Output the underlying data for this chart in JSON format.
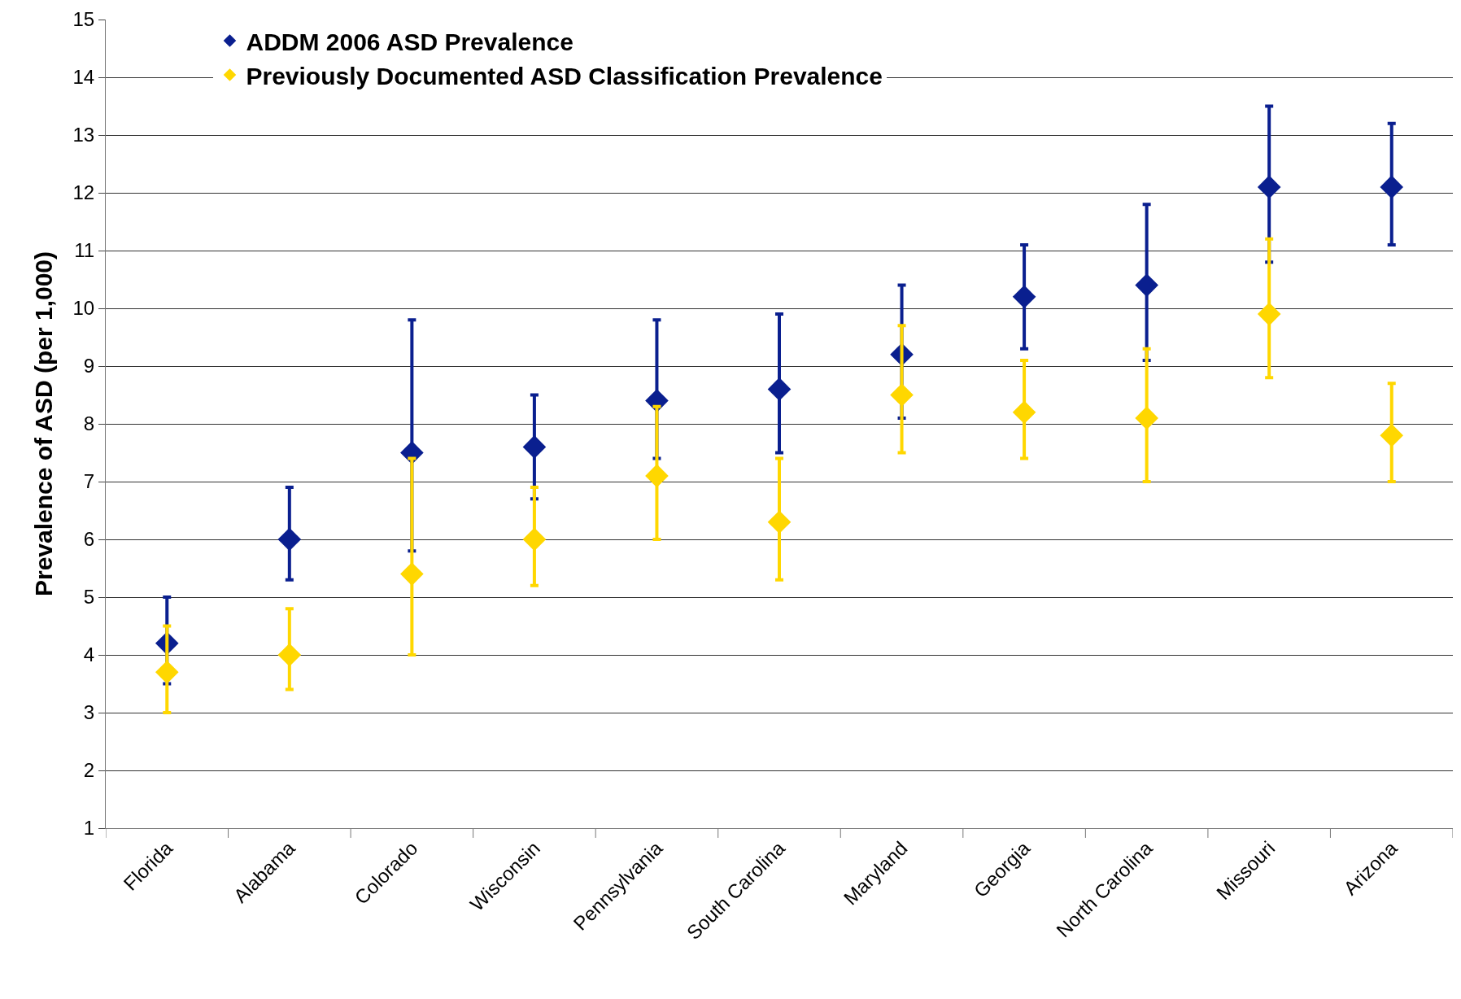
{
  "chart_data": {
    "type": "scatter",
    "ylabel": "Prevalence of ASD (per 1,000)",
    "categories": [
      "Florida",
      "Alabama",
      "Colorado",
      "Wisconsin",
      "Pennsylvania",
      "South Carolina",
      "Maryland",
      "Georgia",
      "North Carolina",
      "Missouri",
      "Arizona"
    ],
    "series": [
      {
        "name": "ADDM 2006 ASD Prevalence",
        "color": "#0a1f8f",
        "values": [
          4.2,
          6.0,
          7.5,
          7.6,
          8.4,
          8.6,
          9.2,
          10.2,
          10.4,
          12.1,
          12.1
        ],
        "errors": [
          [
            3.5,
            5.0
          ],
          [
            5.3,
            6.9
          ],
          [
            5.8,
            9.8
          ],
          [
            6.7,
            8.5
          ],
          [
            7.4,
            9.8
          ],
          [
            7.5,
            9.9
          ],
          [
            8.1,
            10.4
          ],
          [
            9.3,
            11.1
          ],
          [
            9.1,
            11.8
          ],
          [
            10.8,
            13.5
          ],
          [
            11.1,
            13.2
          ]
        ]
      },
      {
        "name": "Previously Documented ASD Classification Prevalence",
        "color": "#ffd700",
        "values": [
          3.7,
          4.0,
          5.4,
          6.0,
          7.1,
          6.3,
          8.5,
          8.2,
          8.1,
          9.9,
          7.8
        ],
        "errors": [
          [
            3.0,
            4.5
          ],
          [
            3.4,
            4.8
          ],
          [
            4.0,
            7.4
          ],
          [
            5.2,
            6.9
          ],
          [
            6.0,
            8.3
          ],
          [
            5.3,
            7.4
          ],
          [
            7.5,
            9.7
          ],
          [
            7.4,
            9.1
          ],
          [
            7.0,
            9.3
          ],
          [
            8.8,
            11.2
          ],
          [
            7.0,
            8.7
          ]
        ]
      }
    ],
    "ylim": [
      1,
      15
    ],
    "yticks": [
      1,
      2,
      3,
      4,
      5,
      6,
      7,
      8,
      9,
      10,
      11,
      12,
      13,
      14,
      15
    ],
    "grid": "y",
    "legend": "top left",
    "marker": "diamond"
  }
}
